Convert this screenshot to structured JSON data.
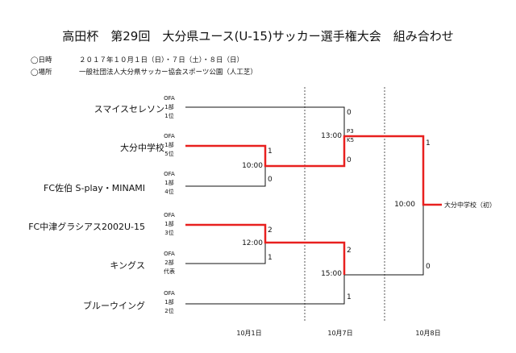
{
  "title": "高田杯　第29回　大分県ユース(U-15)サッカー選手権大会　組み合わせ",
  "info": {
    "date_label": "◯日時",
    "date_value": "２０１７年１０月１日（日）・７日（土）・８日（日）",
    "venue_label": "◯場所",
    "venue_value": "一般社団法人大分県サッカー協会スポーツ公園（人工芝）"
  },
  "teams": [
    {
      "name": "スマイスセレソン",
      "meta": [
        "OFA",
        "1部",
        "1位"
      ]
    },
    {
      "name": "大分中学校",
      "meta": [
        "OFA",
        "1部",
        "5位"
      ]
    },
    {
      "name": "FC佐伯 S-play・MINAMI",
      "meta": [
        "OFA",
        "1部",
        "4位"
      ]
    },
    {
      "name": "FC中津グラシアス2002U-15",
      "meta": [
        "OFA",
        "1部",
        "3位"
      ]
    },
    {
      "name": "キングス",
      "meta": [
        "OFA",
        "2部",
        "代表"
      ]
    },
    {
      "name": "ブルーウイング",
      "meta": [
        "OFA",
        "1部",
        "2位"
      ]
    }
  ],
  "matches": {
    "r1_top": {
      "time": "10:00",
      "score_a": "1",
      "score_b": "0"
    },
    "r1_bottom": {
      "time": "12:00",
      "score_a": "2",
      "score_b": "1"
    },
    "semi_top": {
      "time": "13:00",
      "score_a": "0",
      "score_b": "0",
      "pk_a": "P3",
      "pk_b": "K5"
    },
    "semi_bottom": {
      "time": "15:00",
      "score_a": "2",
      "score_b": "1"
    },
    "final": {
      "time": "10:00",
      "score_a": "1",
      "score_b": "0"
    }
  },
  "winner": "大分中学校（初）",
  "dates": [
    "10月1日",
    "10月7日",
    "10月8日"
  ],
  "colors": {
    "highlight": "#e8201f",
    "line": "#111111",
    "dashed": "#555555"
  }
}
